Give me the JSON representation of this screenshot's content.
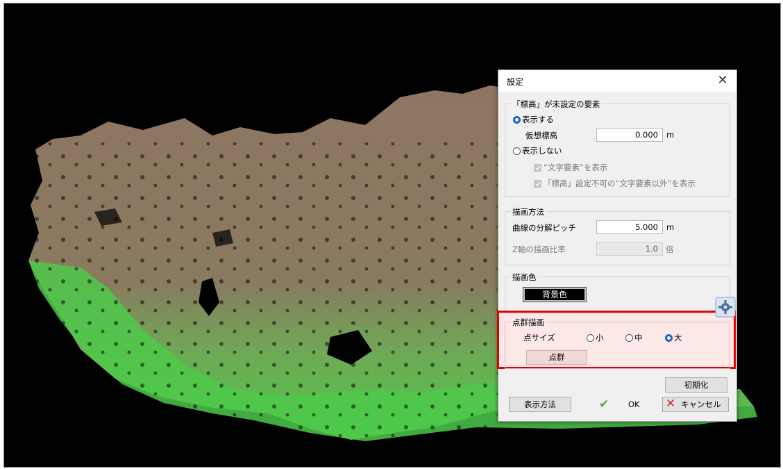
{
  "dialog": {
    "title": "設定",
    "close_glyph": "✕",
    "undefined_elevation": {
      "group_label": "「標高」が未設定の要素",
      "show_label": "表示する",
      "virtual_elevation_label": "仮想標高",
      "virtual_elevation_value": "0.000",
      "virtual_elevation_unit": "m",
      "hide_label": "表示しない",
      "show_text_elements_label": "“文字要素”を表示",
      "show_non_text_label": "「標高」設定不可の“文字要素以外”を表示"
    },
    "drawing_method": {
      "group_label": "描画方法",
      "curve_pitch_label": "曲線の分解ピッチ",
      "curve_pitch_value": "5.000",
      "curve_pitch_unit": "m",
      "z_ratio_label": "Z軸の描画比率",
      "z_ratio_value": "1.0",
      "z_ratio_unit": "倍"
    },
    "drawing_color": {
      "group_label": "描画色",
      "button_label": "背景色"
    },
    "point_cloud": {
      "group_label": "点群描画",
      "point_size_label": "点サイズ",
      "small_label": "小",
      "medium_label": "中",
      "large_label": "大",
      "selected_size": "大",
      "button_label": "点群"
    },
    "reset_label": "初期化",
    "display_method_label": "表示方法",
    "ok_label": "OK",
    "cancel_label": "キャンセル"
  },
  "colors": {
    "viewport_bg": "#000000",
    "tree_brown": "#9a7a62",
    "ground_green": "#4ec94a",
    "highlight_border": "#e00000",
    "radio_selected": "#1e5fc8"
  },
  "icons": [
    "close-icon",
    "gear-icon",
    "checkmark-icon",
    "cross-icon"
  ]
}
